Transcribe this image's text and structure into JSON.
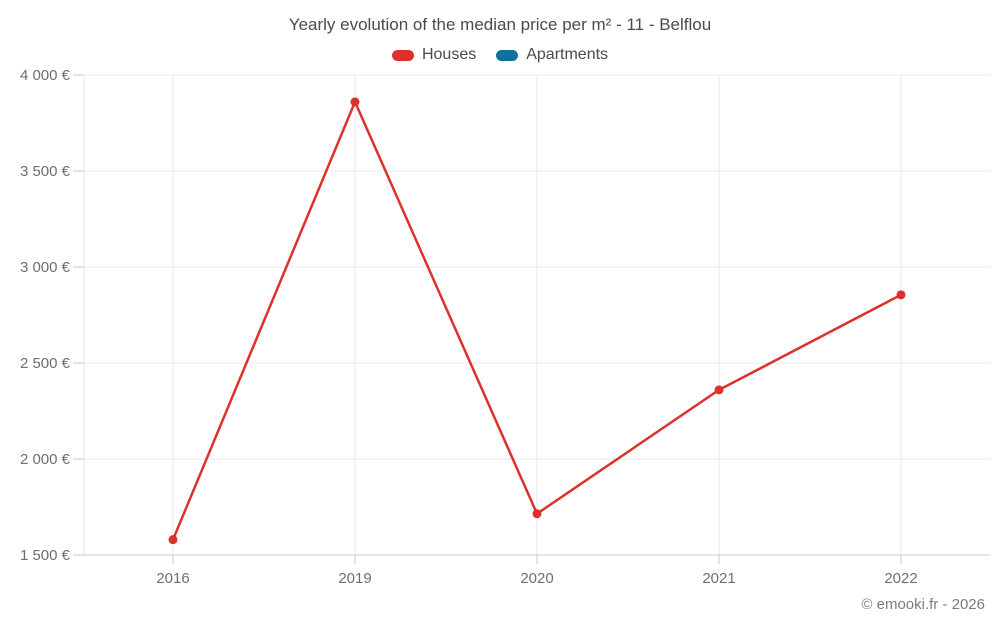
{
  "title": "Yearly evolution of the median price per m² - 11 - Belflou",
  "legend": {
    "items": [
      {
        "label": "Houses"
      },
      {
        "label": "Apartments"
      }
    ]
  },
  "footer": {
    "copyright": "© emooki.fr - 2026"
  },
  "chart_data": {
    "type": "line",
    "categories": [
      "2016",
      "2019",
      "2020",
      "2021",
      "2022"
    ],
    "series": [
      {
        "name": "Houses",
        "color": "#dc322c",
        "values": [
          1580,
          3860,
          1715,
          2360,
          2855
        ]
      },
      {
        "name": "Apartments",
        "color": "#11719e",
        "values": []
      }
    ],
    "title": "Yearly evolution of the median price per m² - 11 - Belflou",
    "xlabel": "",
    "ylabel": "",
    "ylim": [
      1500,
      4000
    ],
    "ytick_step": 500,
    "ytick_labels": [
      "1 500 €",
      "2 000 €",
      "2 500 €",
      "3 000 €",
      "3 500 €",
      "4 000 €"
    ],
    "grid": true,
    "legend_position": "top"
  }
}
